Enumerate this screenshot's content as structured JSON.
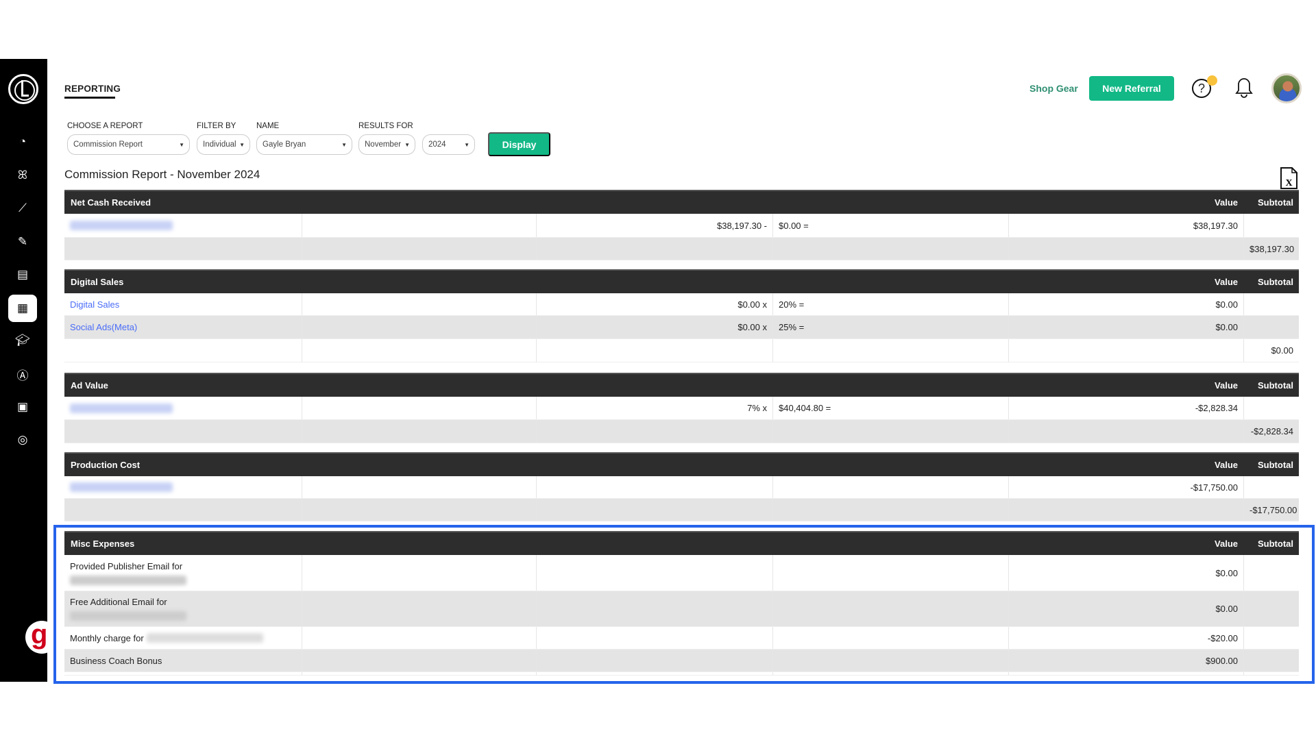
{
  "header": {
    "tab": "REPORTING",
    "shop_gear": "Shop Gear",
    "new_referral": "New Referral",
    "help_icon": "?"
  },
  "sidebar": {
    "items": [
      "dashboard",
      "people",
      "analytics",
      "edit",
      "news",
      "reporting",
      "education",
      "brand",
      "contacts",
      "account"
    ],
    "active": "reporting",
    "badge": "g"
  },
  "filters": {
    "report": {
      "label": "CHOOSE A REPORT",
      "value": "Commission Report"
    },
    "filter_by": {
      "label": "FILTER BY",
      "value": "Individual"
    },
    "name": {
      "label": "NAME",
      "value": "Gayle Bryan"
    },
    "results_for": {
      "label": "RESULTS FOR",
      "month": "November",
      "year": "2024"
    },
    "display": "Display"
  },
  "report_title": "Commission Report - November 2024",
  "colors": {
    "accent": "#12b886",
    "header": "#2d2d2d",
    "link": "#4a6cf7",
    "highlight": "#2563eb",
    "notification": "#f9c23c"
  },
  "tables": [
    {
      "title": "Net Cash Received",
      "value_label": "Value",
      "subtotal_label": "Subtotal",
      "rows": [
        {
          "label": "",
          "blurred": true,
          "c3": "$38,197.30 -",
          "c4": "$0.00 =",
          "value": "$38,197.30",
          "subtotal": ""
        },
        {
          "label": "",
          "c3": "",
          "c4": "",
          "value": "",
          "subtotal": "$38,197.30"
        }
      ]
    },
    {
      "title": "Digital Sales",
      "value_label": "Value",
      "subtotal_label": "Subtotal",
      "rows": [
        {
          "label": "Digital Sales",
          "link": true,
          "c3": "$0.00 x",
          "c4": "20% =",
          "value": "$0.00",
          "subtotal": ""
        },
        {
          "label": "Social Ads(Meta)",
          "link": true,
          "c3": "$0.00 x",
          "c4": "25% =",
          "value": "$0.00",
          "subtotal": ""
        },
        {
          "label": "",
          "c3": "",
          "c4": "",
          "value": "",
          "subtotal": "$0.00"
        }
      ]
    },
    {
      "title": "Ad Value",
      "value_label": "Value",
      "subtotal_label": "Subtotal",
      "rows": [
        {
          "label": "",
          "blurred": true,
          "c3": "7% x",
          "c4": "$40,404.80 =",
          "value": "-$2,828.34",
          "subtotal": ""
        },
        {
          "label": "",
          "c3": "",
          "c4": "",
          "value": "",
          "subtotal": "-$2,828.34"
        }
      ]
    },
    {
      "title": "Production Cost",
      "value_label": "Value",
      "subtotal_label": "Subtotal",
      "rows": [
        {
          "label": "",
          "blurred": true,
          "c3": "",
          "c4": "",
          "value": "-$17,750.00",
          "subtotal": ""
        },
        {
          "label": "",
          "c3": "",
          "c4": "",
          "value": "",
          "subtotal": "-$17,750.00"
        }
      ]
    },
    {
      "title": "Misc Expenses",
      "value_label": "Value",
      "subtotal_label": "Subtotal",
      "rows": [
        {
          "label": "Provided Publisher Email for",
          "blurred_below": true,
          "c3": "",
          "c4": "",
          "value": "$0.00",
          "subtotal": ""
        },
        {
          "label": "Free Additional Email for",
          "blurred_below": true,
          "c3": "",
          "c4": "",
          "value": "$0.00",
          "subtotal": ""
        },
        {
          "label": "Monthly charge for",
          "blurred_inline": true,
          "c3": "",
          "c4": "",
          "value": "-$20.00",
          "subtotal": ""
        },
        {
          "label": "Business Coach Bonus",
          "c3": "",
          "c4": "",
          "value": "$900.00",
          "subtotal": ""
        },
        {
          "label": "",
          "c3": "",
          "c4": "",
          "value": "",
          "subtotal": ""
        }
      ]
    }
  ]
}
